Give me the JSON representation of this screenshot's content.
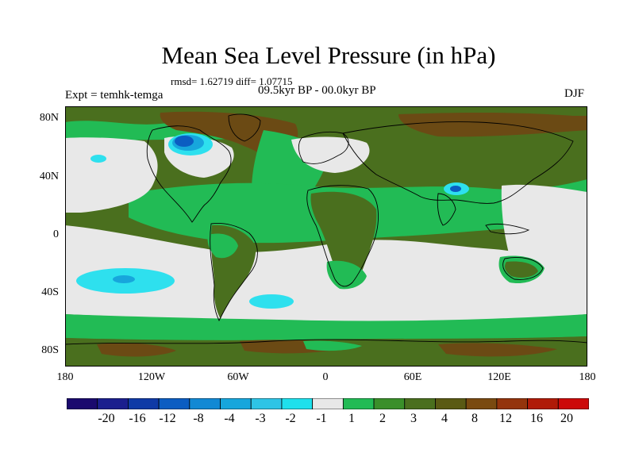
{
  "title": "Mean Sea Level Pressure (in hPa)",
  "stats_line": "rmsd= 1.62719 diff= 1.07715",
  "period": "09.5kyr BP - 00.0kyr BP",
  "experiment": "Expt = temhk-temga",
  "season": "DJF",
  "axes": {
    "lat_labels": [
      "80N",
      "40N",
      "0",
      "40S",
      "80S"
    ],
    "lon_labels": [
      "180",
      "120W",
      "60W",
      "0",
      "60E",
      "120E",
      "180"
    ]
  },
  "colorbar": {
    "colors": [
      "#1a0a6e",
      "#1b1f8e",
      "#0f3aa6",
      "#0b5dc2",
      "#1289d4",
      "#17a6dc",
      "#2ec4e6",
      "#1ee0ec",
      "#e8e8e8",
      "#22bb55",
      "#3a8f2a",
      "#4a6f1e",
      "#5a5a14",
      "#7a4a10",
      "#94340c",
      "#b01a08",
      "#cc0a0a"
    ],
    "labels": [
      "-20",
      "-16",
      "-12",
      "-8",
      "-4",
      "-3",
      "-2",
      "-1",
      "1",
      "2",
      "3",
      "4",
      "8",
      "12",
      "16",
      "20"
    ]
  },
  "map_colors": {
    "background": "#4a6f1e",
    "zero_band": "#e8e8e8",
    "light_green": "#22bb55",
    "brown": "#6b4a14",
    "cyan": "#2ee0ee",
    "light_blue": "#17a6dc",
    "blue": "#0b5dc2",
    "coast": "#000000"
  }
}
